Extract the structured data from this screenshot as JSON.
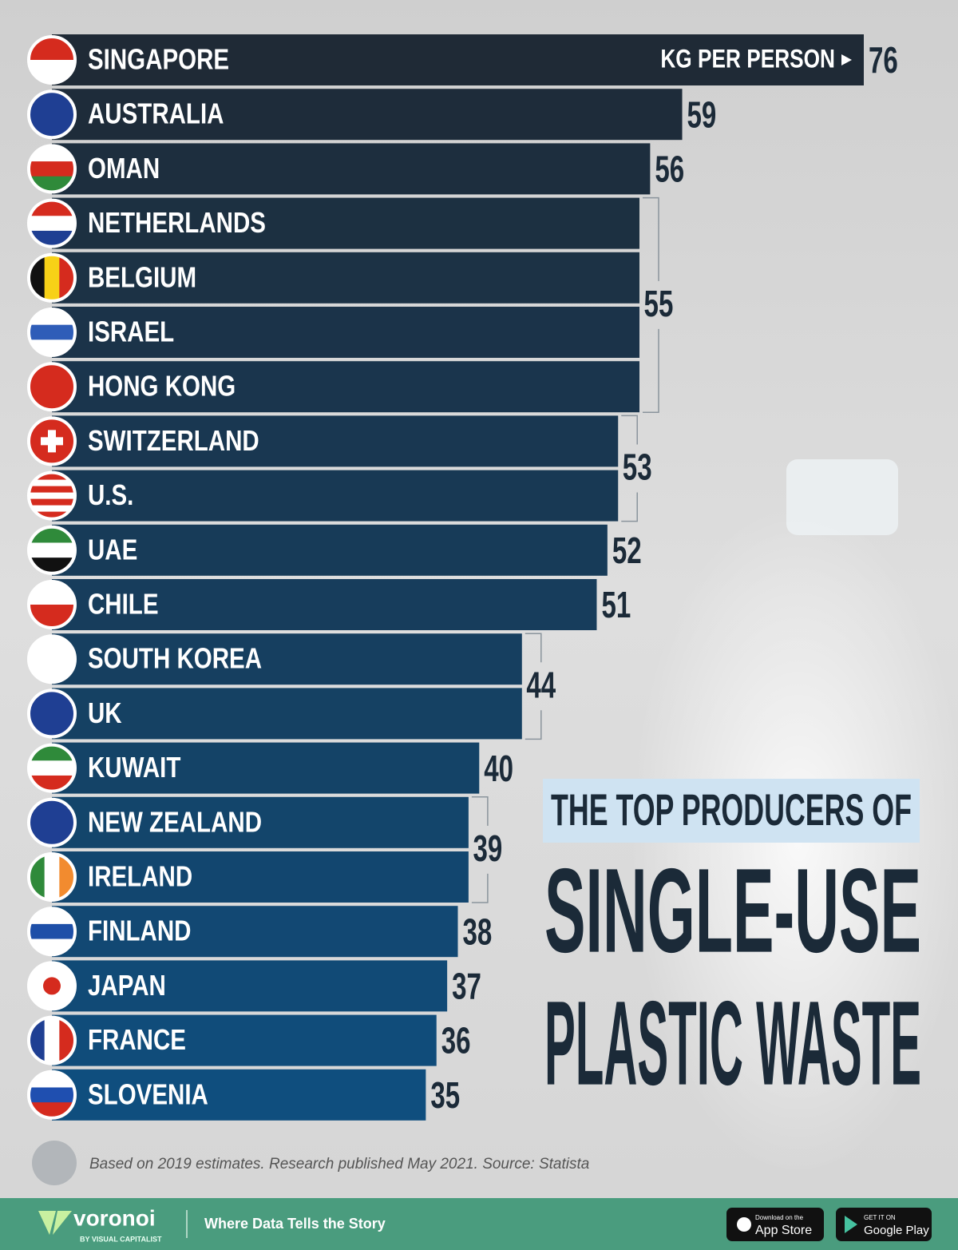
{
  "chart_data": {
    "type": "bar",
    "orientation": "horizontal",
    "title_lines": [
      "THE TOP PRODUCERS OF",
      "SINGLE-USE",
      "PLASTIC WASTE"
    ],
    "unit_label": "KG PER PERSON",
    "categories": [
      "SINGAPORE",
      "AUSTRALIA",
      "OMAN",
      "NETHERLANDS",
      "BELGIUM",
      "ISRAEL",
      "HONG KONG",
      "SWITZERLAND",
      "U.S.",
      "UAE",
      "CHILE",
      "SOUTH KOREA",
      "UK",
      "KUWAIT",
      "NEW ZEALAND",
      "IRELAND",
      "FINLAND",
      "JAPAN",
      "FRANCE",
      "SLOVENIA"
    ],
    "values": [
      76,
      59,
      56,
      55,
      55,
      55,
      55,
      53,
      53,
      52,
      51,
      44,
      44,
      40,
      39,
      39,
      38,
      37,
      36,
      35
    ],
    "colors": [
      "#1f2a36",
      "#0f4e7e"
    ],
    "note": "Based on 2019 estimates. Research published May 2021. Source: Statista"
  },
  "footer": {
    "brand": "voronoi",
    "brand_sub": "BY VISUAL CAPITALIST",
    "tagline": "Where Data Tells the Story",
    "app_store_small": "Download on the",
    "app_store": "App Store",
    "google_small": "GET IT ON",
    "google": "Google Play"
  }
}
